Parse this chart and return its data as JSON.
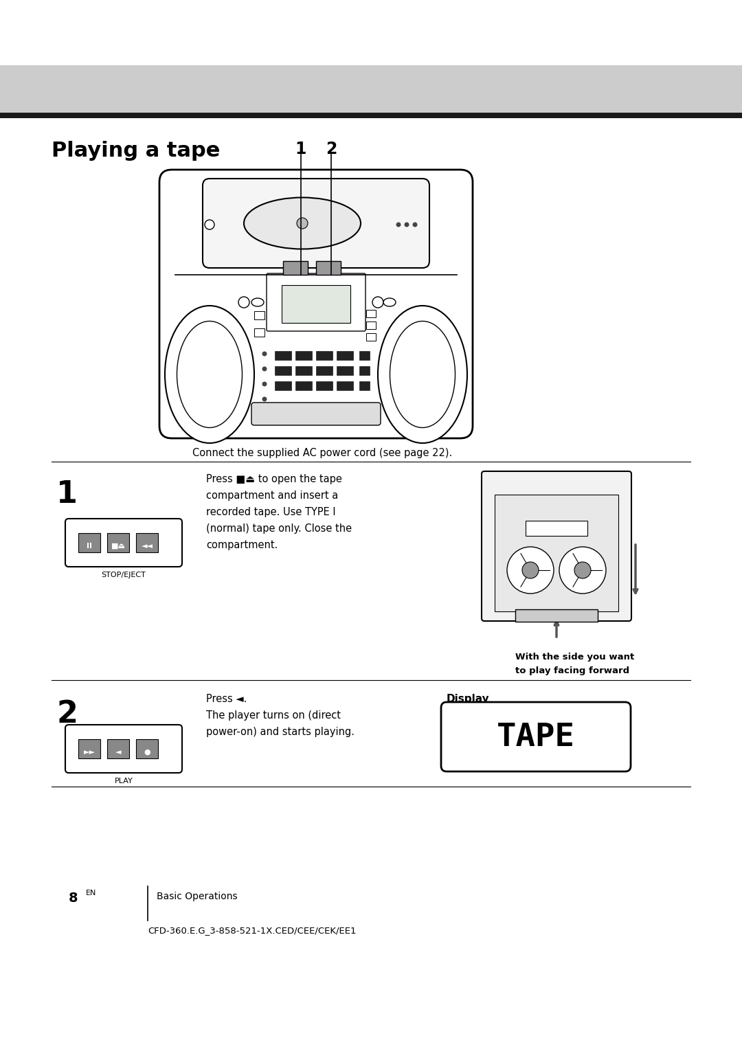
{
  "bg_color": "#ffffff",
  "header_bar_color": "#cccccc",
  "header_bar_dark_line": "#1a1a1a",
  "title": "Playing a tape",
  "title_fontsize": 22,
  "connect_text": "Connect the supplied AC power cord (see page 22).",
  "step1_text_line1": "Press ■⏏ to open the tape",
  "step1_text_line2": "compartment and insert a",
  "step1_text_line3": "recorded tape. Use TYPE I",
  "step1_text_line4": "(normal) tape only. Close the",
  "step1_text_line5": "compartment.",
  "stop_eject_label": "STOP/EJECT",
  "side_note_line1": "With the side you want",
  "side_note_line2": "to play facing forward",
  "step2_text_line1": "Press ◄.",
  "step2_text_line2": "The player turns on (direct",
  "step2_text_line3": "power-on) and starts playing.",
  "play_label": "PLAY",
  "display_label": "Display",
  "tape_display_text": "TAPE",
  "page_number": "8",
  "page_superscript": "EN",
  "section_label": "Basic Operations",
  "model_code": "CFD-360.E.G_3-858-521-1X.CED/CEE/CEK/EE1",
  "text_color": "#000000"
}
